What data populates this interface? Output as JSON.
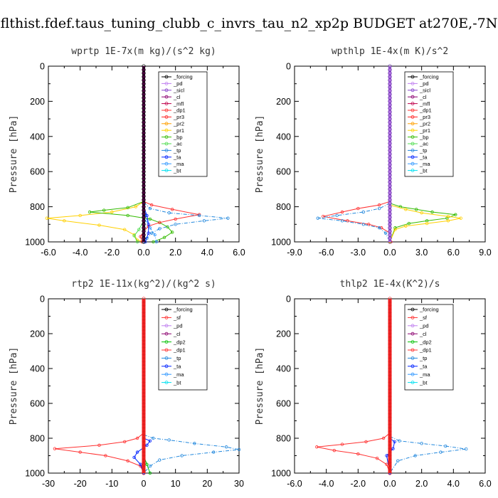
{
  "title": "flthist.fdef.taus_tuning_clubb_c_invrs_tau_n2_xp2p  BUDGET at270E,-7N",
  "colors": {
    "_forcing": "#000000",
    "_pd": "#c080f0",
    "_sicl": "#8844cc",
    "_cl": "#8c0070",
    "_mfl": "#c0004a",
    "_dp1": "#ff3030",
    "_pr3": "#ff2222",
    "_pr2": "#ffa000",
    "_pr1": "#ffd000",
    "_bp": "#33bb00",
    "_ac": "#50dd50",
    "_tp": "#2288dd",
    "_ta": "#0022ff",
    "_ma": "#3399ff",
    "_bt": "#00e0f0",
    "_sf": "#ff3030",
    "_dp2": "#00c000"
  },
  "chart_data": [
    {
      "type": "line",
      "title": "wprtp  1E-7x(m kg)/(s^2 kg)",
      "ylabel": "Pressure [hPa]",
      "xlim": [
        -6,
        6
      ],
      "ylim": [
        1000,
        0
      ],
      "xticks": [
        "-6.0",
        "-4.0",
        "-2.0",
        "0.0",
        "2.0",
        "4.0",
        "6.0"
      ],
      "yticks": [
        "0",
        "200",
        "400",
        "600",
        "800",
        "1000"
      ],
      "xtick_values": [
        -6,
        -4,
        -2,
        0,
        2,
        4,
        6
      ],
      "legend": [
        "_forcing",
        "_pd",
        "_sicl",
        "_cl",
        "_mfl",
        "_dp1",
        "_pr3",
        "_pr2",
        "_pr1",
        "_bp",
        "_ac",
        "_tp",
        "_ta",
        "_ma",
        "_bt"
      ],
      "series": [
        {
          "name": "_pr1",
          "values": [
            [
              0,
              770
            ],
            [
              -0.5,
              800
            ],
            [
              -2,
              830
            ],
            [
              -4,
              850
            ],
            [
              -6.1,
              865
            ],
            [
              -5,
              880
            ],
            [
              -2.8,
              905
            ],
            [
              -1.2,
              930
            ],
            [
              -0.6,
              960
            ],
            [
              -0.4,
              990
            ],
            [
              0,
              1000
            ]
          ]
        },
        {
          "name": "_bp",
          "values": [
            [
              0,
              770
            ],
            [
              -1,
              805
            ],
            [
              -2.5,
              820
            ],
            [
              -3.4,
              830
            ],
            [
              -1,
              850
            ],
            [
              0.4,
              870
            ],
            [
              1,
              890
            ],
            [
              1.5,
              915
            ],
            [
              1.8,
              945
            ],
            [
              1.3,
              975
            ],
            [
              0.6,
              1000
            ]
          ]
        },
        {
          "name": "_dp1",
          "values": [
            [
              0,
              770
            ],
            [
              0.5,
              790
            ],
            [
              1.8,
              815
            ],
            [
              3.5,
              845
            ],
            [
              2,
              870
            ],
            [
              1,
              890
            ],
            [
              0.3,
              910
            ],
            [
              0,
              940
            ],
            [
              -0.2,
              970
            ],
            [
              -0.1,
              1000
            ]
          ]
        },
        {
          "name": "_tp",
          "values": [
            [
              0,
              775
            ],
            [
              0.4,
              810
            ],
            [
              1.6,
              835
            ],
            [
              3.5,
              850
            ],
            [
              5.3,
              865
            ],
            [
              3.8,
              880
            ],
            [
              2,
              900
            ],
            [
              1,
              925
            ],
            [
              0.5,
              950
            ],
            [
              0.2,
              980
            ],
            [
              0,
              1000
            ]
          ]
        },
        {
          "name": "_ma",
          "values": [
            [
              0,
              800
            ],
            [
              0.1,
              850
            ],
            [
              0.2,
              880
            ],
            [
              0.4,
              920
            ],
            [
              0.7,
              960
            ],
            [
              0.8,
              1000
            ]
          ]
        },
        {
          "name": "_ac",
          "values": [
            [
              0,
              880
            ],
            [
              -0.3,
              930
            ],
            [
              -0.6,
              965
            ],
            [
              -0.4,
              1000
            ]
          ]
        },
        {
          "name": "_ta",
          "values": [
            [
              0,
              800
            ],
            [
              0.2,
              850
            ],
            [
              0.3,
              900
            ],
            [
              0.3,
              950
            ],
            [
              0.1,
              1000
            ]
          ]
        },
        {
          "name": "_forcing",
          "values": [
            [
              0,
              0
            ],
            [
              0,
              1000
            ]
          ]
        }
      ]
    },
    {
      "type": "line",
      "title": "wpthlp  1E-4x(m K)/s^2",
      "ylabel": "Pressure [hPa]",
      "xlim": [
        -9,
        9
      ],
      "ylim": [
        1000,
        0
      ],
      "xticks": [
        "-9.0",
        "-6.0",
        "-3.0",
        "0.0",
        "3.0",
        "6.0",
        "9.0"
      ],
      "yticks": [
        "0",
        "200",
        "400",
        "600",
        "800",
        "1000"
      ],
      "xtick_values": [
        -9,
        -6,
        -3,
        0,
        3,
        6,
        9
      ],
      "legend": [
        "_forcing",
        "_pd",
        "_sicl",
        "_cl",
        "_mfl",
        "_dp1",
        "_pr3",
        "_pr2",
        "_pr1",
        "_bp",
        "_ac",
        "_tp",
        "_ta",
        "_ma",
        "_bt"
      ],
      "series": [
        {
          "name": "_dp1",
          "values": [
            [
              0,
              770
            ],
            [
              -1,
              790
            ],
            [
              -3,
              810
            ],
            [
              -4.5,
              830
            ],
            [
              -6.3,
              855
            ],
            [
              -4,
              880
            ],
            [
              -2,
              900
            ],
            [
              -0.8,
              920
            ],
            [
              0,
              950
            ],
            [
              0.1,
              1000
            ]
          ]
        },
        {
          "name": "_tp",
          "values": [
            [
              0,
              780
            ],
            [
              -1,
              810
            ],
            [
              -2.5,
              830
            ],
            [
              -5,
              850
            ],
            [
              -6.8,
              865
            ],
            [
              -4.5,
              880
            ],
            [
              -2.5,
              900
            ],
            [
              -1,
              920
            ],
            [
              -0.4,
              950
            ],
            [
              0,
              1000
            ]
          ]
        },
        {
          "name": "_bp",
          "values": [
            [
              0,
              780
            ],
            [
              1,
              800
            ],
            [
              2.5,
              815
            ],
            [
              4,
              830
            ],
            [
              6.2,
              845
            ],
            [
              5.4,
              865
            ],
            [
              3.5,
              880
            ],
            [
              1.8,
              895
            ],
            [
              0.5,
              920
            ],
            [
              0,
              1000
            ]
          ]
        },
        {
          "name": "_pr1",
          "values": [
            [
              0,
              790
            ],
            [
              1.5,
              815
            ],
            [
              3,
              835
            ],
            [
              5.5,
              855
            ],
            [
              6.7,
              865
            ],
            [
              5.5,
              880
            ],
            [
              3.5,
              895
            ],
            [
              1.5,
              910
            ],
            [
              0.5,
              930
            ],
            [
              0,
              1000
            ]
          ]
        },
        {
          "name": "_forcing",
          "values": [
            [
              0,
              0
            ],
            [
              0,
              1000
            ]
          ]
        }
      ]
    },
    {
      "type": "line",
      "title": "rtp2  1E-11x(kg^2)/(kg^2 s)",
      "ylabel": "Pressure [hPa]",
      "xlim": [
        -30,
        30
      ],
      "ylim": [
        1000,
        0
      ],
      "xticks": [
        "-30",
        "-20",
        "-10",
        "0",
        "10",
        "20",
        "30"
      ],
      "yticks": [
        "0",
        "200",
        "400",
        "600",
        "800",
        "1000"
      ],
      "xtick_values": [
        -30,
        -20,
        -10,
        0,
        10,
        20,
        30
      ],
      "legend": [
        "_forcing",
        "_sf",
        "_pd",
        "_cl",
        "_dp2",
        "_dp1",
        "_tp",
        "_ta",
        "_ma",
        "_bt"
      ],
      "series": [
        {
          "name": "_dp1",
          "values": [
            [
              0,
              770
            ],
            [
              -2,
              800
            ],
            [
              -6,
              820
            ],
            [
              -14,
              840
            ],
            [
              -28,
              860
            ],
            [
              -20,
              880
            ],
            [
              -12,
              900
            ],
            [
              -5,
              930
            ],
            [
              -1,
              960
            ],
            [
              0,
              1000
            ]
          ]
        },
        {
          "name": "_tp",
          "values": [
            [
              0,
              780
            ],
            [
              3,
              800
            ],
            [
              8,
              810
            ],
            [
              16,
              830
            ],
            [
              26,
              850
            ],
            [
              30,
              865
            ],
            [
              22,
              880
            ],
            [
              12,
              900
            ],
            [
              5,
              925
            ],
            [
              2,
              960
            ],
            [
              0,
              1000
            ]
          ]
        },
        {
          "name": "_ta",
          "values": [
            [
              0,
              800
            ],
            [
              2,
              815
            ],
            [
              1,
              840
            ],
            [
              -2,
              880
            ],
            [
              -3,
              910
            ],
            [
              -1,
              950
            ],
            [
              0,
              1000
            ]
          ]
        },
        {
          "name": "_dp2",
          "values": [
            [
              0,
              900
            ],
            [
              1,
              950
            ],
            [
              2,
              1000
            ]
          ]
        },
        {
          "name": "_forcing",
          "values": [
            [
              0,
              0
            ],
            [
              0,
              1000
            ]
          ]
        }
      ]
    },
    {
      "type": "line",
      "title": "thlp2  1E-4x(K^2)/s",
      "ylabel": "Pressure [hPa]",
      "xlim": [
        -6,
        6
      ],
      "ylim": [
        1000,
        0
      ],
      "xticks": [
        "-6.0",
        "-4.0",
        "-2.0",
        "0.0",
        "2.0",
        "4.0",
        "6.0"
      ],
      "yticks": [
        "0",
        "200",
        "400",
        "600",
        "800",
        "1000"
      ],
      "xtick_values": [
        -6,
        -4,
        -2,
        0,
        2,
        4,
        6
      ],
      "legend": [
        "_forcing",
        "_sf",
        "_pd",
        "_cl",
        "_dp2",
        "_dp1",
        "_tp",
        "_ta",
        "_ma",
        "_bt"
      ],
      "series": [
        {
          "name": "_dp1",
          "values": [
            [
              0,
              770
            ],
            [
              -0.4,
              800
            ],
            [
              -1.5,
              820
            ],
            [
              -3,
              835
            ],
            [
              -4.6,
              850
            ],
            [
              -3.5,
              870
            ],
            [
              -2,
              890
            ],
            [
              -0.8,
              915
            ],
            [
              -0.2,
              950
            ],
            [
              0,
              1000
            ]
          ]
        },
        {
          "name": "_tp",
          "values": [
            [
              0,
              790
            ],
            [
              0.6,
              815
            ],
            [
              2,
              830
            ],
            [
              3.5,
              845
            ],
            [
              4.8,
              862
            ],
            [
              3.2,
              880
            ],
            [
              1.6,
              900
            ],
            [
              0.5,
              930
            ],
            [
              0,
              1000
            ]
          ]
        },
        {
          "name": "_ta",
          "values": [
            [
              0,
              800
            ],
            [
              0.3,
              820
            ],
            [
              0.2,
              860
            ],
            [
              -0.2,
              900
            ],
            [
              0,
              1000
            ]
          ]
        },
        {
          "name": "_forcing",
          "values": [
            [
              0,
              0
            ],
            [
              0,
              1000
            ]
          ]
        }
      ]
    }
  ]
}
